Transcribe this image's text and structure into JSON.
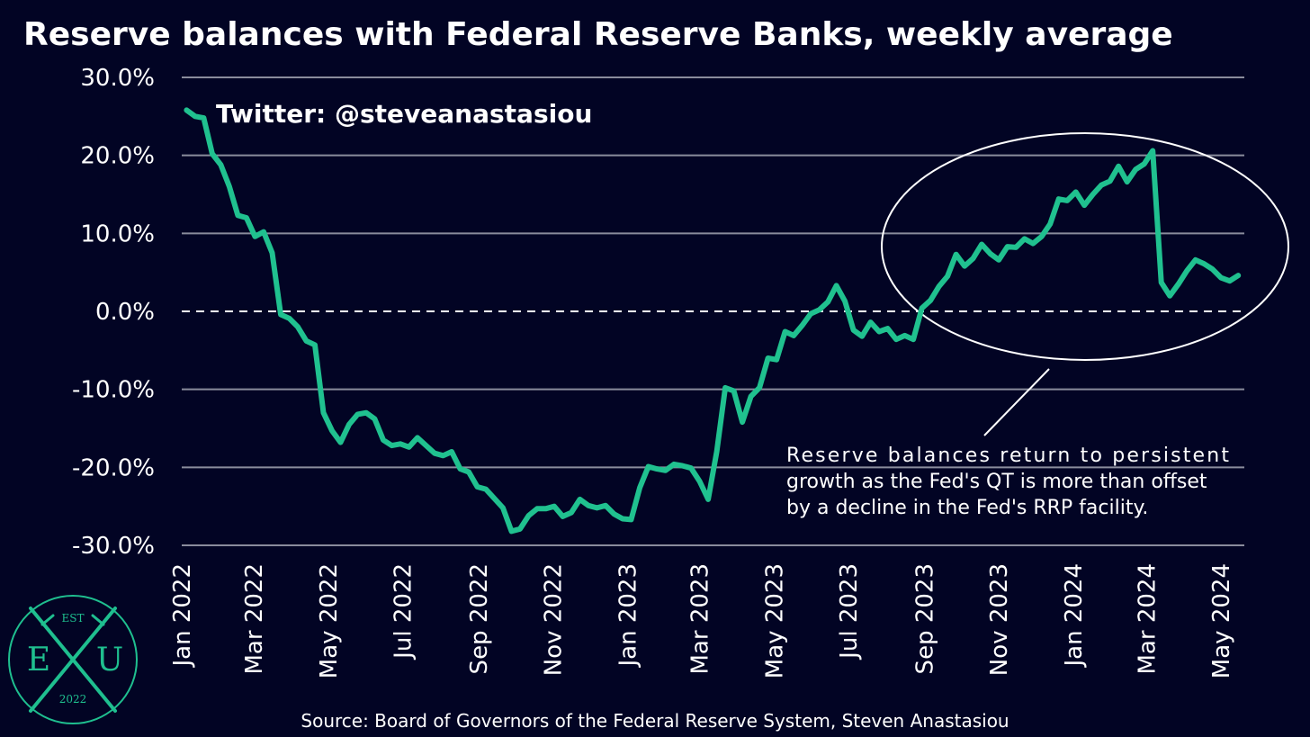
{
  "colors": {
    "background": "#020424",
    "series": "#20c18f",
    "grid": "#8a8c9c",
    "text": "#ffffff",
    "logo": "#1fbf8f"
  },
  "handle": "Twitter: @steveanastasiou",
  "source": "Source: Board of Governors of the Federal Reserve System, Steven Anastasiou",
  "annotation": {
    "lines": [
      "Reserve balances return to persistent",
      "growth as the Fed's QT is more than offset",
      "by a decline in the Fed's RRP facility."
    ]
  },
  "logo": {
    "top": "EST",
    "left": "E",
    "middle": "X",
    "right": "U",
    "bottom": "2022",
    "icon": "exu-crossed-swords-logo"
  },
  "chart_data": {
    "type": "line",
    "title": "Reserve balances with Federal Reserve Banks, weekly average",
    "xlabel": "",
    "ylabel": "",
    "ylim": [
      -30,
      30
    ],
    "yticks": [
      30,
      20,
      10,
      0,
      -10,
      -20,
      -30
    ],
    "ytick_labels": [
      "30.0%",
      "20.0%",
      "10.0%",
      "0.0%",
      "-10.0%",
      "-20.0%",
      "-30.0%"
    ],
    "xlim": [
      "2022-01-01",
      "2024-05-20"
    ],
    "xticks": [
      "2022-01-01",
      "2022-03-01",
      "2022-05-01",
      "2022-07-01",
      "2022-09-01",
      "2022-11-01",
      "2023-01-01",
      "2023-03-01",
      "2023-05-01",
      "2023-07-01",
      "2023-09-01",
      "2023-11-01",
      "2024-01-01",
      "2024-03-01",
      "2024-05-01"
    ],
    "xtick_labels": [
      "Jan 2022",
      "Mar 2022",
      "May 2022",
      "Jul 2022",
      "Sep 2022",
      "Nov 2022",
      "Jan 2023",
      "Mar 2023",
      "May 2023",
      "Jul 2023",
      "Sep 2023",
      "Nov 2023",
      "Jan 2024",
      "Mar 2024",
      "May 2024"
    ],
    "zero_line": "dashed",
    "grid": true,
    "series": [
      {
        "x": [
          "2022-01-05",
          "2022-01-12",
          "2022-01-19",
          "2022-01-26",
          "2022-02-02",
          "2022-02-09",
          "2022-02-16",
          "2022-02-23",
          "2022-03-02",
          "2022-03-09",
          "2022-03-16",
          "2022-03-23",
          "2022-03-30",
          "2022-04-06",
          "2022-04-13",
          "2022-04-20",
          "2022-04-27",
          "2022-05-04",
          "2022-05-11",
          "2022-05-18",
          "2022-05-25",
          "2022-06-01",
          "2022-06-08",
          "2022-06-15",
          "2022-06-22",
          "2022-06-29",
          "2022-07-06",
          "2022-07-13",
          "2022-07-20",
          "2022-07-27",
          "2022-08-03",
          "2022-08-10",
          "2022-08-17",
          "2022-08-24",
          "2022-08-31",
          "2022-09-07",
          "2022-09-14",
          "2022-09-21",
          "2022-09-28",
          "2022-10-05",
          "2022-10-12",
          "2022-10-19",
          "2022-10-26",
          "2022-11-02",
          "2022-11-09",
          "2022-11-16",
          "2022-11-23",
          "2022-11-30",
          "2022-12-07",
          "2022-12-14",
          "2022-12-21",
          "2022-12-28",
          "2023-01-04",
          "2023-01-11",
          "2023-01-18",
          "2023-01-25",
          "2023-02-01",
          "2023-02-08",
          "2023-02-15",
          "2023-02-22",
          "2023-03-01",
          "2023-03-08",
          "2023-03-15",
          "2023-03-22",
          "2023-03-29",
          "2023-04-05",
          "2023-04-12",
          "2023-04-19",
          "2023-04-26",
          "2023-05-03",
          "2023-05-10",
          "2023-05-17",
          "2023-05-24",
          "2023-05-31",
          "2023-06-07",
          "2023-06-14",
          "2023-06-21",
          "2023-06-28",
          "2023-07-05",
          "2023-07-12",
          "2023-07-19",
          "2023-07-26",
          "2023-08-02",
          "2023-08-09",
          "2023-08-16",
          "2023-08-23",
          "2023-08-30",
          "2023-09-06",
          "2023-09-13",
          "2023-09-20",
          "2023-09-27",
          "2023-10-04",
          "2023-10-11",
          "2023-10-18",
          "2023-10-25",
          "2023-11-01",
          "2023-11-08",
          "2023-11-15",
          "2023-11-22",
          "2023-11-29",
          "2023-12-06",
          "2023-12-13",
          "2023-12-20",
          "2023-12-27",
          "2024-01-03",
          "2024-01-10",
          "2024-01-17",
          "2024-01-24",
          "2024-01-31",
          "2024-02-07",
          "2024-02-14",
          "2024-02-21",
          "2024-02-28",
          "2024-03-06",
          "2024-03-13",
          "2024-03-20",
          "2024-03-27",
          "2024-04-03",
          "2024-04-10",
          "2024-04-17",
          "2024-04-24",
          "2024-05-01",
          "2024-05-08",
          "2024-05-15"
        ],
        "values": [
          25.8,
          25.0,
          24.8,
          20.2,
          18.8,
          16.0,
          12.3,
          12.0,
          9.6,
          10.2,
          7.5,
          -0.4,
          -0.9,
          -2.0,
          -3.8,
          -4.3,
          -13.0,
          -15.3,
          -16.8,
          -14.5,
          -13.2,
          -13.0,
          -13.8,
          -16.5,
          -17.2,
          -17.0,
          -17.4,
          -16.2,
          -17.2,
          -18.2,
          -18.5,
          -18.0,
          -20.2,
          -20.6,
          -22.5,
          -22.8,
          -24.0,
          -25.2,
          -28.2,
          -27.9,
          -26.2,
          -25.3,
          -25.3,
          -25.0,
          -26.3,
          -25.8,
          -24.1,
          -24.9,
          -25.2,
          -24.9,
          -26.0,
          -26.6,
          -26.7,
          -22.6,
          -19.9,
          -20.2,
          -20.4,
          -19.6,
          -19.8,
          -20.1,
          -21.8,
          -24.1,
          -18.0,
          -9.8,
          -10.2,
          -14.2,
          -10.9,
          -9.8,
          -6.0,
          -6.2,
          -2.6,
          -3.1,
          -1.8,
          -0.3,
          0.2,
          1.2,
          3.3,
          1.3,
          -2.4,
          -3.2,
          -1.4,
          -2.6,
          -2.2,
          -3.6,
          -3.1,
          -3.6,
          0.4,
          1.4,
          3.2,
          4.5,
          7.3,
          5.8,
          6.8,
          8.6,
          7.4,
          6.6,
          8.3,
          8.2,
          9.3,
          8.7,
          9.6,
          11.2,
          14.4,
          14.2,
          15.3,
          13.6,
          15.0,
          16.2,
          16.7,
          18.6,
          16.6,
          18.2,
          18.9,
          20.6,
          3.7,
          2.0,
          3.5,
          5.2,
          6.6,
          6.1,
          5.4,
          4.3,
          3.9,
          4.6
        ]
      }
    ]
  }
}
